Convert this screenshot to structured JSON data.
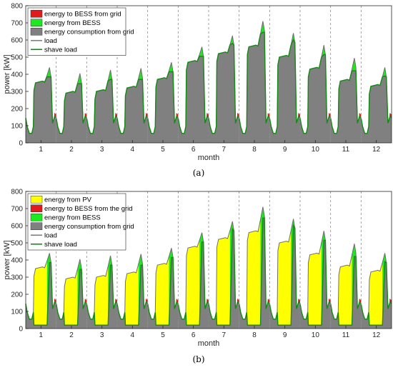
{
  "chart_data": [
    {
      "id": "a",
      "type": "area",
      "caption": "(a)",
      "xlabel": "month",
      "ylabel": "power [kW]",
      "ylim": [
        0,
        800
      ],
      "yticks": [
        0,
        100,
        200,
        300,
        400,
        500,
        600,
        700,
        800
      ],
      "categories": [
        "1",
        "2",
        "3",
        "4",
        "5",
        "6",
        "7",
        "8",
        "9",
        "10",
        "11",
        "12"
      ],
      "grid": "dashed month separators",
      "legend_position": "top-left",
      "legend": [
        {
          "label": "energy to BESS from grid",
          "kind": "patch",
          "color": "#e31a1c"
        },
        {
          "label": "energy from BESS",
          "kind": "patch",
          "color": "#1ee81e"
        },
        {
          "label": "energy consumption from grid",
          "kind": "patch",
          "color": "#808080"
        },
        {
          "label": "load",
          "kind": "line",
          "color": "#7f7f7f"
        },
        {
          "label": "shave load",
          "kind": "line",
          "color": "#138a13"
        }
      ],
      "series": [
        {
          "name": "load",
          "peak": [
            440,
            405,
            425,
            435,
            470,
            560,
            625,
            710,
            640,
            570,
            495,
            440
          ],
          "midday": [
            350,
            290,
            300,
            320,
            370,
            470,
            520,
            560,
            500,
            430,
            360,
            330
          ]
        },
        {
          "name": "shave load",
          "peak": [
            385,
            345,
            370,
            370,
            415,
            505,
            580,
            645,
            600,
            515,
            420,
            390
          ],
          "midday": [
            350,
            290,
            300,
            320,
            370,
            470,
            520,
            560,
            500,
            430,
            360,
            330
          ]
        }
      ]
    },
    {
      "id": "b",
      "type": "area",
      "caption": "(b)",
      "xlabel": "month",
      "ylabel": "power [kW]",
      "ylim": [
        0,
        800
      ],
      "yticks": [
        0,
        100,
        200,
        300,
        400,
        500,
        600,
        700,
        800
      ],
      "categories": [
        "1",
        "2",
        "3",
        "4",
        "5",
        "6",
        "7",
        "8",
        "9",
        "10",
        "11",
        "12"
      ],
      "grid": "dashed month separators",
      "legend_position": "top-left",
      "legend": [
        {
          "label": "energy from PV",
          "kind": "patch",
          "color": "#ffff00"
        },
        {
          "label": "energy to BESS from the grid",
          "kind": "patch",
          "color": "#e31a1c"
        },
        {
          "label": "energy from BESS",
          "kind": "patch",
          "color": "#1ee81e"
        },
        {
          "label": "energy consumption from grid",
          "kind": "patch",
          "color": "#808080"
        },
        {
          "label": "load",
          "kind": "line",
          "color": "#7f7f7f"
        },
        {
          "label": "shave load",
          "kind": "line",
          "color": "#138a13"
        }
      ],
      "series": [
        {
          "name": "load",
          "peak": [
            440,
            405,
            425,
            435,
            470,
            560,
            625,
            710,
            640,
            570,
            495,
            440
          ],
          "midday": [
            350,
            290,
            300,
            320,
            370,
            470,
            520,
            560,
            500,
            430,
            360,
            330
          ]
        },
        {
          "name": "shave load",
          "peak": [
            385,
            345,
            370,
            370,
            415,
            505,
            580,
            645,
            600,
            515,
            420,
            390
          ],
          "midday": [
            20,
            20,
            20,
            20,
            20,
            20,
            20,
            20,
            20,
            20,
            20,
            20
          ]
        }
      ]
    }
  ]
}
